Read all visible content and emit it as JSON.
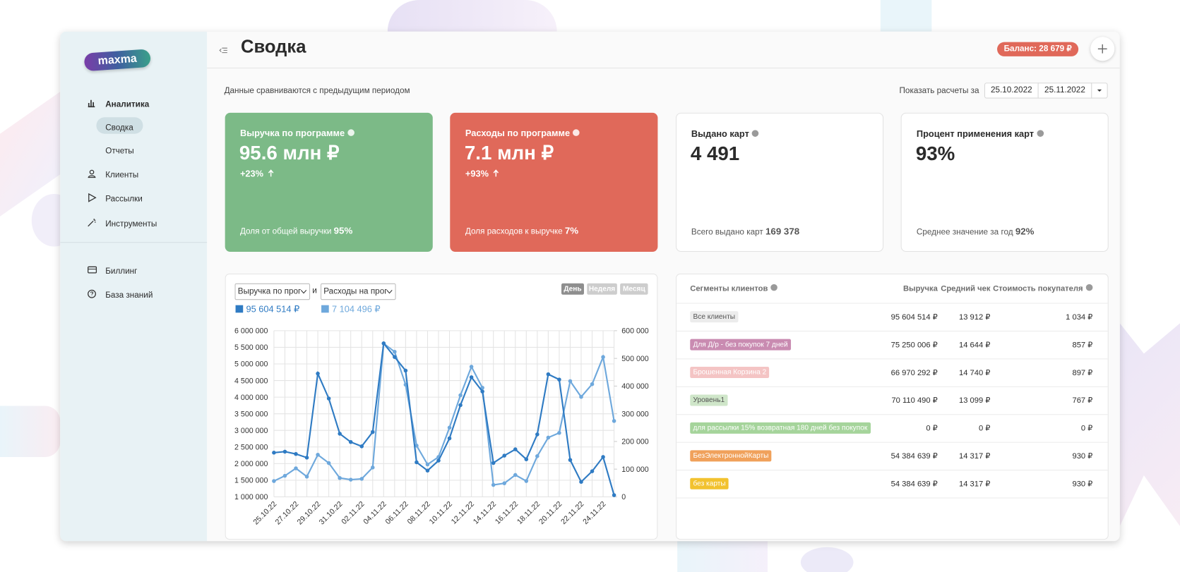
{
  "sidebar": {
    "logo": "maxma",
    "items": [
      "Аналитика",
      "Сводка",
      "Отчеты",
      "Клиенты",
      "Рассылки",
      "Инструменты",
      "Биллинг",
      "База знаний"
    ]
  },
  "header": {
    "title": "Сводка",
    "balance": "Баланс: 28 679 ₽"
  },
  "period": {
    "note": "Данные сравниваются с предыдущим периодом",
    "label": "Показать расчеты за",
    "from": "25.10.2022",
    "to": "25.11.2022"
  },
  "cards": [
    {
      "title": "Выручка по программе",
      "value": "95.6 млн ₽",
      "change": "+23%",
      "footer_label": "Доля от общей выручки",
      "footer_value": "95%",
      "color": "#7cba87"
    },
    {
      "title": "Расходы по программе",
      "value": "7.1 млн ₽",
      "change": "+93%",
      "footer_label": "Доля расходов к выручке",
      "footer_value": "7%",
      "color": "#e0695a"
    },
    {
      "title": "Выдано карт",
      "value": "4 491",
      "footer_label": "Всего выдано карт",
      "footer_value": "169 378",
      "color": "#ffffff"
    },
    {
      "title": "Процент применения карт",
      "value": "93%",
      "footer_label": "Среднее значение за год",
      "footer_value": "92%",
      "color": "#ffffff"
    }
  ],
  "chart_controls": {
    "metric_1": "Выручка по программе",
    "conjunction": "и",
    "metric_2": "Расходы на программу",
    "periods": [
      "День",
      "Неделя",
      "Месяц"
    ]
  },
  "chart_data": {
    "type": "line",
    "categories": [
      "25.10.22",
      null,
      "27.10.22",
      null,
      "29.10.22",
      null,
      "31.10.22",
      null,
      "02.11.22",
      null,
      "04.11.22",
      null,
      "06.11.22",
      null,
      "08.11.22",
      null,
      "10.11.22",
      null,
      "12.11.22",
      null,
      "14.11.22",
      null,
      "16.11.22",
      null,
      "18.11.22",
      null,
      "20.11.22",
      null,
      "22.11.22",
      null,
      "24.11.22",
      null
    ],
    "series": [
      {
        "name": "95 604 514 ₽",
        "color": "#2f7bc3",
        "values": [
          2330000,
          2360000,
          2290000,
          2180000,
          4710000,
          3960000,
          2900000,
          2650000,
          2520000,
          2950000,
          5620000,
          5210000,
          4800000,
          2040000,
          1790000,
          2090000,
          2760000,
          3760000,
          4600000,
          4170000,
          2020000,
          2240000,
          2430000,
          2130000,
          2880000,
          4690000,
          4530000,
          2110000,
          1450000,
          1770000,
          2200000,
          1050000
        ]
      },
      {
        "name": "7 104 496 ₽",
        "color": "#6ea8dc",
        "axis": "y2",
        "values": [
          57000,
          76000,
          103000,
          73000,
          152000,
          122000,
          68000,
          62000,
          65000,
          106000,
          554000,
          524000,
          405000,
          185000,
          117000,
          144000,
          250000,
          367000,
          470000,
          394000,
          43000,
          49000,
          79000,
          57000,
          147000,
          214000,
          231000,
          418000,
          361000,
          407000,
          505000,
          274000
        ]
      }
    ],
    "ylim": [
      1000000,
      6000000
    ],
    "yticks": [
      {
        "value": 1000000,
        "label": "1 000 000"
      },
      {
        "value": 1500000,
        "label": "1 500 000"
      },
      {
        "value": 2000000,
        "label": "2 000 000"
      },
      {
        "value": 2500000,
        "label": "2 500 000"
      },
      {
        "value": 3000000,
        "label": "3 000 000"
      },
      {
        "value": 3500000,
        "label": "3 500 000"
      },
      {
        "value": 4000000,
        "label": "4 000 000"
      },
      {
        "value": 4500000,
        "label": "4 500 000"
      },
      {
        "value": 5000000,
        "label": "5 000 000"
      },
      {
        "value": 5500000,
        "label": "5 500 000"
      },
      {
        "value": 6000000,
        "label": "6 000 000"
      }
    ],
    "y2lim": [
      0,
      600000
    ],
    "y2ticks": [
      0,
      {
        "value": 100000,
        "label": "100 000"
      },
      {
        "value": 200000,
        "label": "200 000"
      },
      {
        "value": 300000,
        "label": "300 000"
      },
      {
        "value": 400000,
        "label": "400 000"
      },
      {
        "value": 500000,
        "label": "500 000"
      },
      {
        "value": 600000,
        "label": "600 000"
      }
    ],
    "grid": true
  },
  "segments": {
    "header": [
      "Сегменты клиентов",
      "Выручка",
      "Средний чек",
      "Стоимость покупателя"
    ],
    "rows": [
      {
        "name": "Все клиенты",
        "color": "#ececec",
        "text_color": "#555555",
        "revenue": "95 604 514 ₽",
        "avg_check": "13 912 ₽",
        "cost": "1 034 ₽"
      },
      {
        "name": "Для Д/р - без покупок 7 дней",
        "color": "#c98bb1",
        "text_color": "#ffffff",
        "revenue": "75 250 006 ₽",
        "avg_check": "14 644 ₽",
        "cost": "857 ₽"
      },
      {
        "name": "Брошенная Корзина 2",
        "color": "#f4c4c4",
        "text_color": "#ffffff",
        "revenue": "66 970 292 ₽",
        "avg_check": "14 740 ₽",
        "cost": "897 ₽"
      },
      {
        "name": "Уровень1",
        "color": "#cfe6c9",
        "text_color": "#555555",
        "revenue": "70 110 490 ₽",
        "avg_check": "13 099 ₽",
        "cost": "767 ₽"
      },
      {
        "name": "для рассылки 15% возвратная 180 дней без покупок",
        "color": "#a5d49b",
        "text_color": "#ffffff",
        "revenue": "0 ₽",
        "avg_check": "0 ₽",
        "cost": "0 ₽"
      },
      {
        "name": "БезЭлектроннойКарты",
        "color": "#f0a15b",
        "text_color": "#ffffff",
        "revenue": "54 384 639 ₽",
        "avg_check": "14 317 ₽",
        "cost": "930 ₽"
      },
      {
        "name": "без карты",
        "color": "#f2c22f",
        "text_color": "#ffffff",
        "revenue": "54 384 639 ₽",
        "avg_check": "14 317 ₽",
        "cost": "930 ₽"
      }
    ]
  }
}
